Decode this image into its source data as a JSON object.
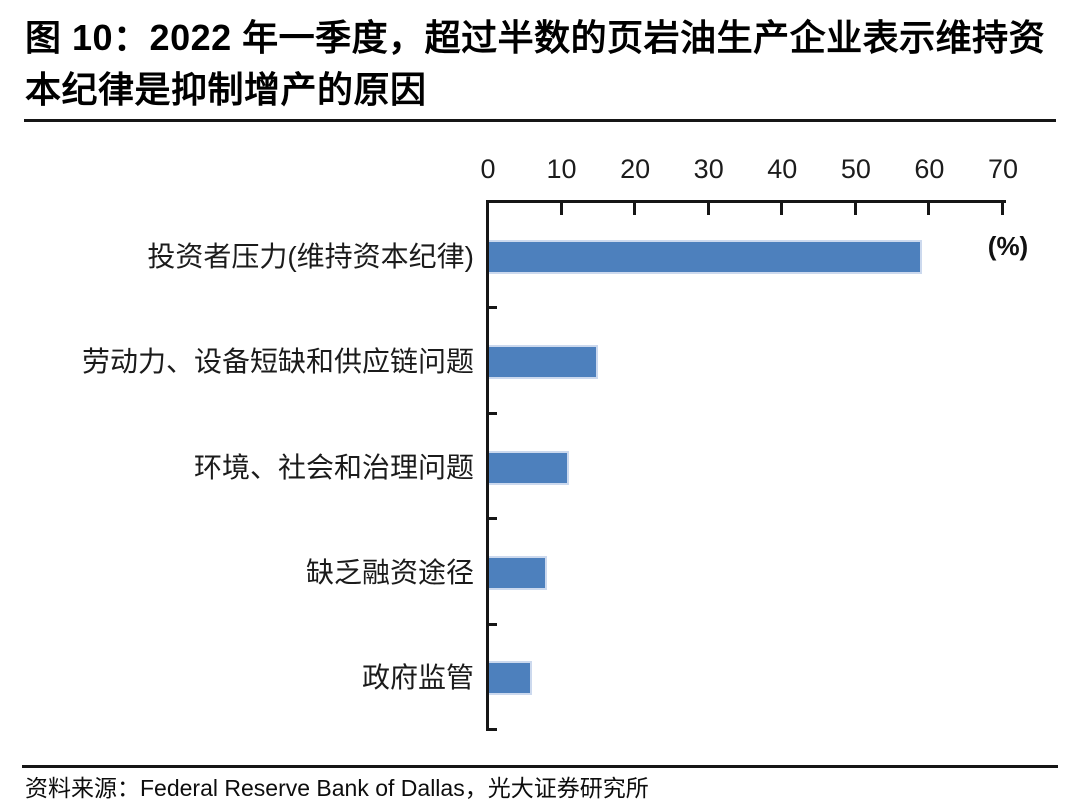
{
  "figure": {
    "title": "图 10：2022 年一季度，超过半数的页岩油生产企业表示维持资本纪律是抑制增产的原因",
    "source": "资料来源：Federal Reserve Bank of Dallas，光大证券研究所"
  },
  "chart_data": {
    "type": "bar",
    "orientation": "horizontal",
    "title": "图 10：2022 年一季度，超过半数的页岩油生产企业表示维持资本纪律是抑制增产的原因",
    "categories": [
      "投资者压力(维持资本纪律)",
      "劳动力、设备短缺和供应链问题",
      "环境、社会和治理问题",
      "缺乏融资途径",
      "政府监管"
    ],
    "values": [
      59,
      15,
      11,
      8,
      6
    ],
    "unit_label": "(%)",
    "xlabel": "",
    "ylabel": "",
    "xlim": [
      0,
      70
    ],
    "x_ticks": [
      0,
      10,
      20,
      30,
      40,
      50,
      60,
      70
    ],
    "grid": false,
    "legend": "none",
    "bar_color": "#4d80bd",
    "axis_color": "#161616"
  }
}
